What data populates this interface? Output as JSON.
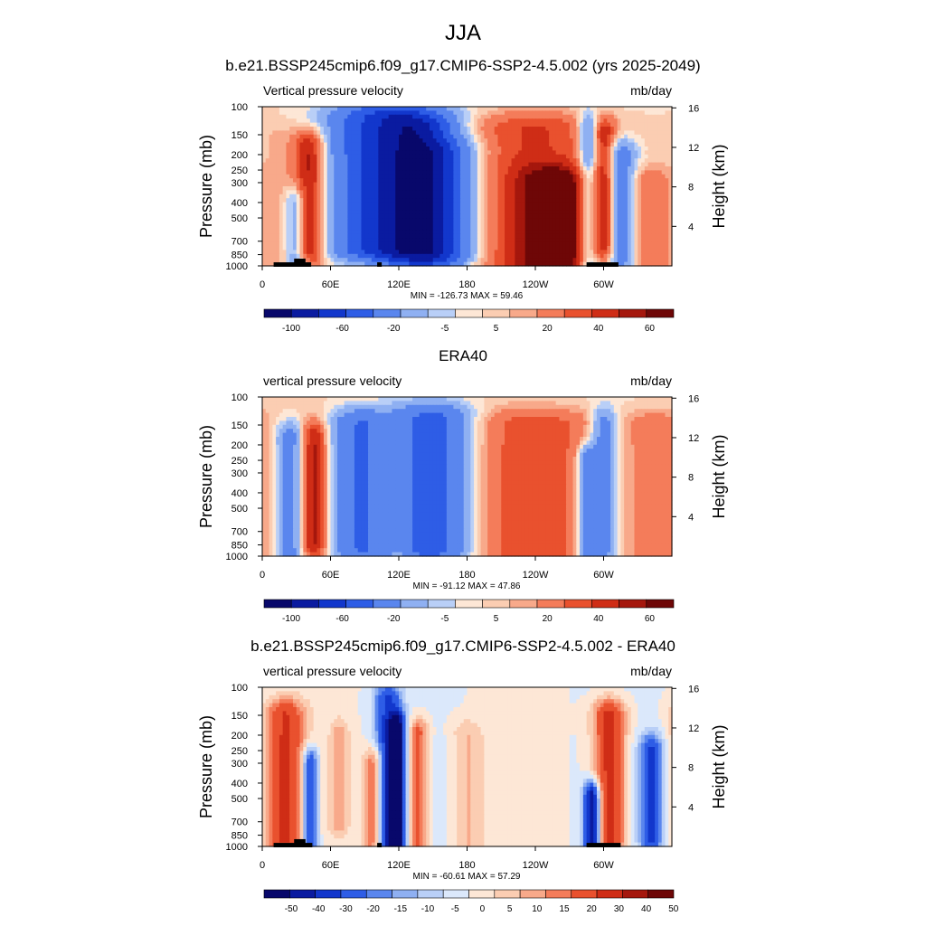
{
  "figure": {
    "title": "JJA"
  },
  "chart_data": [
    {
      "type": "heatmap",
      "title": "b.e21.BSSP245cmip6.f09_g17.CMIP6-SSP2-4.5.002 (yrs 2025-2049)",
      "left_string": "Vertical pressure velocity",
      "right_string": "mb/day",
      "ylabel": "Pressure (mb)",
      "y2label": "Height (km)",
      "x_ticks": [
        "0",
        "60E",
        "120E",
        "180",
        "120W",
        "60W"
      ],
      "y_ticks": [
        "100",
        "150",
        "200",
        "250",
        "300",
        "400",
        "500",
        "700",
        "850",
        "1000"
      ],
      "y2_ticks": [
        "4",
        "8",
        "12",
        "16"
      ],
      "min_max": "MIN = -126.73  MAX =  59.46",
      "colorbar_labels": [
        "-100",
        "-60",
        "-20",
        "-5",
        "5",
        "20",
        "40",
        "60"
      ],
      "levels": [
        -120,
        -100,
        -80,
        -60,
        -40,
        -20,
        -10,
        -5,
        0,
        5,
        10,
        20,
        30,
        40,
        50,
        60
      ],
      "ylim": [
        1000,
        100
      ],
      "xlim": [
        0,
        360
      ],
      "features": [
        {
          "lon": 20,
          "p_top": 160,
          "p_bot": 1000,
          "width": 14,
          "value": 8
        },
        {
          "lon": 30,
          "p_top": 400,
          "p_bot": 1000,
          "width": 7,
          "value": -30
        },
        {
          "lon": 42,
          "p_top": 180,
          "p_bot": 800,
          "width": 9,
          "value": 45
        },
        {
          "lon": 110,
          "p_top": 120,
          "p_bot": 780,
          "width": 35,
          "value": -70
        },
        {
          "lon": 140,
          "p_top": 140,
          "p_bot": 900,
          "width": 22,
          "value": -45
        },
        {
          "lon": 163,
          "p_top": 200,
          "p_bot": 850,
          "width": 22,
          "value": -30
        },
        {
          "lon": 240,
          "p_top": 140,
          "p_bot": 1000,
          "width": 45,
          "value": 30
        },
        {
          "lon": 260,
          "p_top": 300,
          "p_bot": 900,
          "width": 22,
          "value": 45
        },
        {
          "lon": 287,
          "p_top": 140,
          "p_bot": 1000,
          "width": 7,
          "value": -40
        },
        {
          "lon": 300,
          "p_top": 150,
          "p_bot": 750,
          "width": 7,
          "value": 35
        },
        {
          "lon": 315,
          "p_top": 200,
          "p_bot": 900,
          "width": 10,
          "value": -35
        },
        {
          "lon": 340,
          "p_top": 300,
          "p_bot": 1000,
          "width": 12,
          "value": 20
        }
      ],
      "topography": [
        {
          "lon_start": 10,
          "lon_end": 43,
          "p_top": 950
        },
        {
          "lon_start": 28,
          "lon_end": 38,
          "p_top": 900
        },
        {
          "lon_start": 101,
          "lon_end": 105,
          "p_top": 950
        },
        {
          "lon_start": 285,
          "lon_end": 313,
          "p_top": 950
        }
      ]
    },
    {
      "type": "heatmap",
      "title": "ERA40",
      "left_string": "vertical pressure velocity",
      "right_string": "mb/day",
      "ylabel": "Pressure (mb)",
      "y2label": "Height (km)",
      "x_ticks": [
        "0",
        "60E",
        "120E",
        "180",
        "120W",
        "60W"
      ],
      "y_ticks": [
        "100",
        "150",
        "200",
        "250",
        "300",
        "400",
        "500",
        "700",
        "850",
        "1000"
      ],
      "y2_ticks": [
        "4",
        "8",
        "12",
        "16"
      ],
      "min_max": "MIN = -91.12  MAX =  47.86",
      "colorbar_labels": [
        "-100",
        "-60",
        "-20",
        "-5",
        "5",
        "20",
        "40",
        "60"
      ],
      "levels": [
        -120,
        -100,
        -80,
        -60,
        -40,
        -20,
        -10,
        -5,
        0,
        5,
        10,
        20,
        30,
        40,
        50,
        60
      ],
      "ylim": [
        1000,
        100
      ],
      "xlim": [
        0,
        360
      ],
      "features": [
        {
          "lon": 25,
          "p_top": 180,
          "p_bot": 1000,
          "width": 10,
          "value": -30
        },
        {
          "lon": 45,
          "p_top": 180,
          "p_bot": 850,
          "width": 8,
          "value": 45
        },
        {
          "lon": 85,
          "p_top": 150,
          "p_bot": 900,
          "width": 18,
          "value": -40
        },
        {
          "lon": 120,
          "p_top": 300,
          "p_bot": 1000,
          "width": 6,
          "value": 10
        },
        {
          "lon": 150,
          "p_top": 140,
          "p_bot": 900,
          "width": 25,
          "value": -50
        },
        {
          "lon": 240,
          "p_top": 150,
          "p_bot": 1000,
          "width": 45,
          "value": 25
        },
        {
          "lon": 285,
          "p_top": 250,
          "p_bot": 1000,
          "width": 6,
          "value": -40
        },
        {
          "lon": 300,
          "p_top": 150,
          "p_bot": 900,
          "width": 8,
          "value": -35
        },
        {
          "lon": 345,
          "p_top": 150,
          "p_bot": 1000,
          "width": 18,
          "value": 15
        }
      ],
      "topography": []
    },
    {
      "type": "heatmap",
      "title": "b.e21.BSSP245cmip6.f09_g17.CMIP6-SSP2-4.5.002 - ERA40",
      "left_string": "vertical pressure velocity",
      "right_string": "mb/day",
      "ylabel": "Pressure (mb)",
      "y2label": "Height (km)",
      "x_ticks": [
        "0",
        "60E",
        "120E",
        "180",
        "120W",
        "60W"
      ],
      "y_ticks": [
        "100",
        "150",
        "200",
        "250",
        "300",
        "400",
        "500",
        "700",
        "850",
        "1000"
      ],
      "y2_ticks": [
        "4",
        "8",
        "12",
        "16"
      ],
      "min_max": "MIN = -60.61  MAX =  57.29",
      "colorbar_labels": [
        "-50",
        "-40",
        "-30",
        "-20",
        "-15",
        "-10",
        "-5",
        "0",
        "5",
        "10",
        "15",
        "20",
        "30",
        "40",
        "50"
      ],
      "levels": [
        -60,
        -50,
        -40,
        -30,
        -20,
        -15,
        -10,
        -5,
        0,
        5,
        10,
        15,
        20,
        30,
        40,
        50,
        60
      ],
      "ylim": [
        1000,
        100
      ],
      "xlim": [
        0,
        360
      ],
      "features": [
        {
          "lon": 20,
          "p_top": 150,
          "p_bot": 900,
          "width": 12,
          "value": 30
        },
        {
          "lon": 42,
          "p_top": 300,
          "p_bot": 1000,
          "width": 5,
          "value": -35
        },
        {
          "lon": 68,
          "p_top": 200,
          "p_bot": 700,
          "width": 6,
          "value": 12
        },
        {
          "lon": 98,
          "p_top": 300,
          "p_bot": 950,
          "width": 6,
          "value": 25
        },
        {
          "lon": 110,
          "p_top": 120,
          "p_bot": 1000,
          "width": 8,
          "value": -30
        },
        {
          "lon": 118,
          "p_top": 180,
          "p_bot": 1000,
          "width": 5,
          "value": -55
        },
        {
          "lon": 137,
          "p_top": 200,
          "p_bot": 1000,
          "width": 6,
          "value": 25
        },
        {
          "lon": 180,
          "p_top": 200,
          "p_bot": 1000,
          "width": 10,
          "value": 10
        },
        {
          "lon": 290,
          "p_top": 500,
          "p_bot": 1000,
          "width": 5,
          "value": -55
        },
        {
          "lon": 305,
          "p_top": 150,
          "p_bot": 950,
          "width": 10,
          "value": 35
        },
        {
          "lon": 342,
          "p_top": 250,
          "p_bot": 900,
          "width": 7,
          "value": -30
        }
      ],
      "topography": [
        {
          "lon_start": 10,
          "lon_end": 44,
          "p_top": 950
        },
        {
          "lon_start": 28,
          "lon_end": 38,
          "p_top": 900
        },
        {
          "lon_start": 101,
          "lon_end": 105,
          "p_top": 950
        },
        {
          "lon_start": 285,
          "lon_end": 315,
          "p_top": 950
        }
      ]
    }
  ],
  "colors": {
    "palette": [
      "#08086b",
      "#0a1ba0",
      "#1237cc",
      "#2e5de6",
      "#5a86ee",
      "#8fb0f2",
      "#b9cff7",
      "#dbe8fb",
      "#fde7d6",
      "#fbcdb2",
      "#f8a98a",
      "#f47c5a",
      "#e9512e",
      "#cf2d16",
      "#a5170d",
      "#6e0707"
    ],
    "topography": "#000000"
  }
}
